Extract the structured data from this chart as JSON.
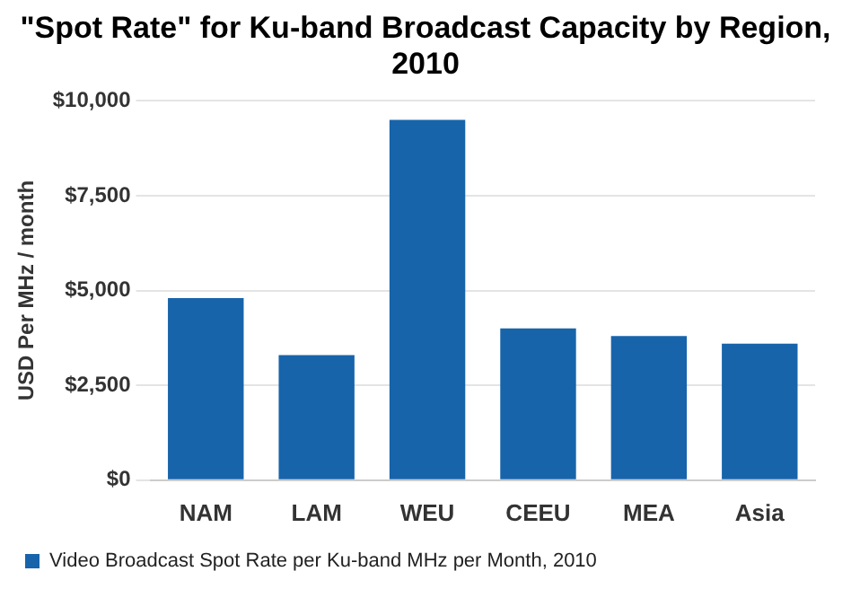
{
  "chart_data": {
    "type": "bar",
    "title": "\"Spot Rate\" for Ku-band Broadcast Capacity by Region, 2010",
    "ylabel": "USD Per MHz / month",
    "categories": [
      "NAM",
      "LAM",
      "WEU",
      "CEEU",
      "MEA",
      "Asia"
    ],
    "series": [
      {
        "name": "Video Broadcast Spot Rate per Ku-band MHz per Month, 2010",
        "color": "#1764ab",
        "values": [
          4800,
          3300,
          9500,
          4000,
          3800,
          3600
        ]
      }
    ],
    "ylim": [
      0,
      10000
    ],
    "yticks": [
      {
        "value": 0,
        "label": "$0"
      },
      {
        "value": 2500,
        "label": "$2,500"
      },
      {
        "value": 5000,
        "label": "$5,000"
      },
      {
        "value": 7500,
        "label": "$7,500"
      },
      {
        "value": 10000,
        "label": "$10,000"
      }
    ],
    "grid": "y",
    "legend": "bottom"
  }
}
